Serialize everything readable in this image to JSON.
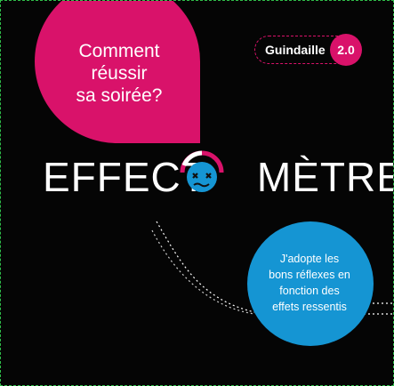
{
  "question": [
    "Comment",
    "réussir",
    "sa soirée?"
  ],
  "badge": {
    "label": "Guindaille",
    "version": "2.0"
  },
  "title": {
    "left": "EFFECT",
    "right": "MÈTRE"
  },
  "info": [
    "J'adopte les",
    "bons réflexes en",
    "fonction des",
    "effets ressentis"
  ],
  "colors": {
    "pink": "#d9126a",
    "blue": "#1595d3",
    "background": "#050505"
  },
  "icons": {
    "logo_o": "dizzy-face-icon"
  }
}
